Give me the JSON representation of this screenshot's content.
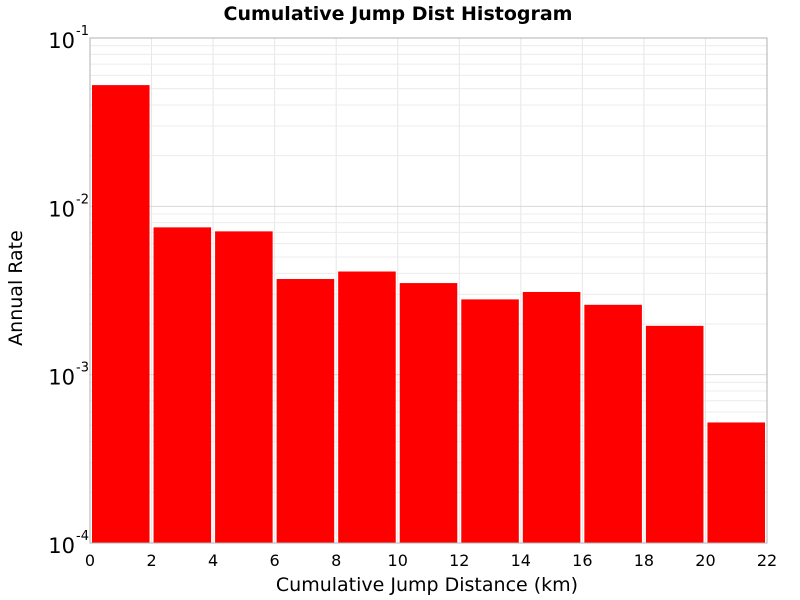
{
  "chart_data": {
    "type": "bar",
    "title": "Cumulative Jump Dist Histogram",
    "xlabel": "Cumulative Jump Distance (km)",
    "ylabel": "Annual Rate",
    "xlim": [
      0,
      22
    ],
    "ylim": [
      0.0001,
      0.1
    ],
    "yscale": "log",
    "grid": true,
    "bar_color": "#ff0000",
    "x_ticks": [
      "0",
      "2",
      "4",
      "6",
      "8",
      "10",
      "12",
      "14",
      "16",
      "18",
      "20",
      "22"
    ],
    "y_ticks": [
      {
        "base": "10",
        "exp": "-4"
      },
      {
        "base": "10",
        "exp": "-3"
      },
      {
        "base": "10",
        "exp": "-2"
      },
      {
        "base": "10",
        "exp": "-1"
      }
    ],
    "bins": [
      {
        "x0": 0,
        "x1": 2,
        "value": 0.0525
      },
      {
        "x0": 2,
        "x1": 4,
        "value": 0.0075
      },
      {
        "x0": 4,
        "x1": 6,
        "value": 0.0071
      },
      {
        "x0": 6,
        "x1": 8,
        "value": 0.0037
      },
      {
        "x0": 8,
        "x1": 10,
        "value": 0.0041
      },
      {
        "x0": 10,
        "x1": 12,
        "value": 0.0035
      },
      {
        "x0": 12,
        "x1": 14,
        "value": 0.0028
      },
      {
        "x0": 14,
        "x1": 16,
        "value": 0.0031
      },
      {
        "x0": 16,
        "x1": 18,
        "value": 0.0026
      },
      {
        "x0": 18,
        "x1": 20,
        "value": 0.00195
      },
      {
        "x0": 20,
        "x1": 22,
        "value": 0.00052
      }
    ]
  }
}
